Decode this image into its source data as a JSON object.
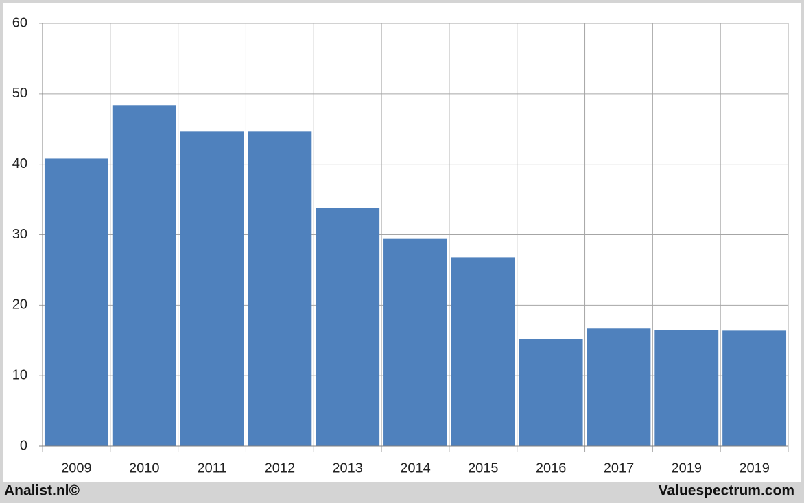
{
  "chart_data": {
    "type": "bar",
    "categories": [
      "2009",
      "2010",
      "2011",
      "2012",
      "2013",
      "2014",
      "2015",
      "2016",
      "2017",
      "2019",
      "2019"
    ],
    "values": [
      40.8,
      48.4,
      44.7,
      44.7,
      33.8,
      29.4,
      26.8,
      15.2,
      16.7,
      16.5,
      16.4
    ],
    "color": "#4f81bd",
    "ylim": [
      0,
      60
    ],
    "yticks": [
      0,
      10,
      20,
      30,
      40,
      50,
      60
    ],
    "grid": true,
    "annotations": [
      "Analist.nl©",
      "Valuespectrum.com"
    ]
  }
}
